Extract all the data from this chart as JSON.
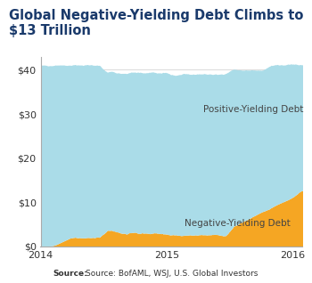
{
  "title": "Global Negative-Yielding Debt Climbs to $13 Trillion",
  "title_color": "#1a3a6b",
  "title_fontsize": 10.5,
  "title_bg_color": "#e8e8e8",
  "positive_color": "#aadce8",
  "negative_color": "#f5a623",
  "positive_label": "Positive-Yielding Debt",
  "negative_label": "Negative-Yielding Debt",
  "source_text": "Source: BofAML, WSJ, U.S. Global Investors",
  "ylabel": "",
  "ylim": [
    0,
    43
  ],
  "yticks": [
    0,
    10,
    20,
    30,
    40
  ],
  "ytick_labels": [
    "$0",
    "$10",
    "$20",
    "$30",
    "$40"
  ],
  "background_color": "#ffffff",
  "plot_bg_color": "#ffffff",
  "grid_color": "#cccccc"
}
